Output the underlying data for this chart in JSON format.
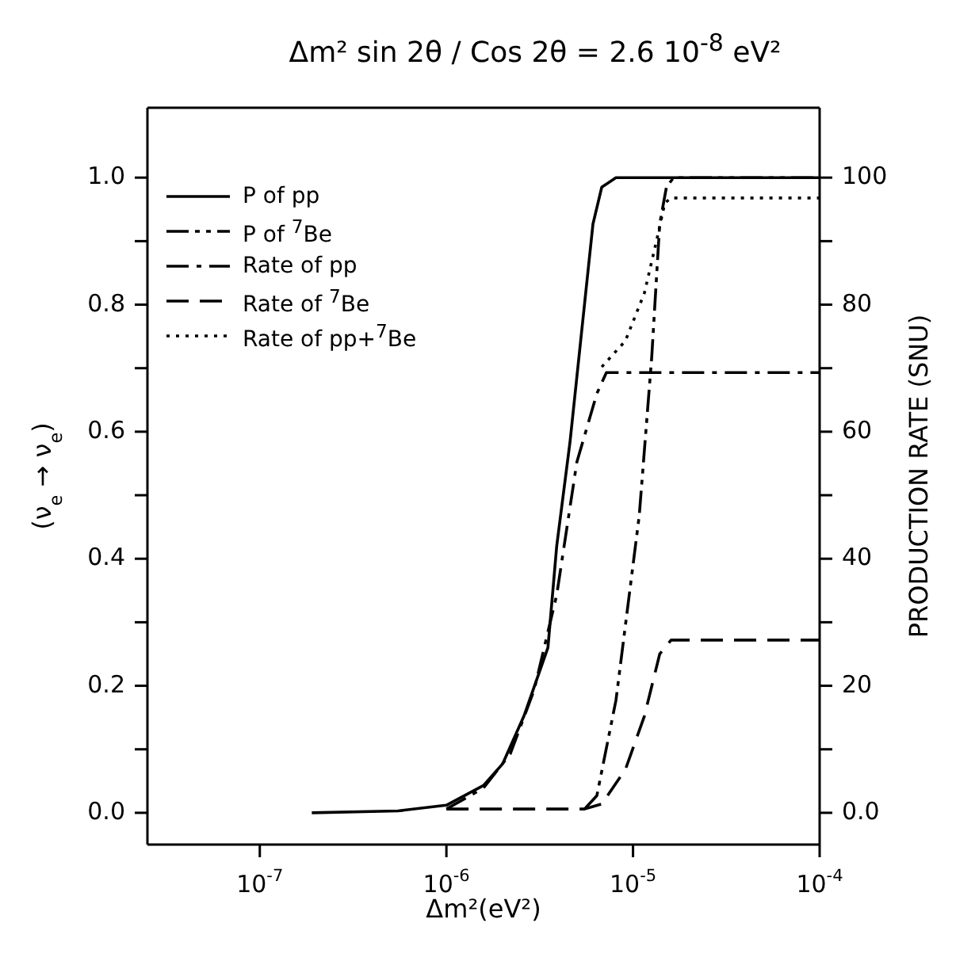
{
  "chart_data": {
    "type": "line",
    "title": "Δm² sin 2θ / Cos 2θ = 2.6  10$^{-8}$ eV²",
    "xlabel": "Δm²(eV²)",
    "ylabel": "(ν$_{e}$ → ν$_{e}$)",
    "y2label": "PRODUCTION RATE (SNU)",
    "log": "x",
    "grid": false,
    "legend": "top left",
    "marker": "none",
    "xlim": [
      2.5e-08,
      0.0001
    ],
    "xticks": [
      {
        "value": 1e-07,
        "label": "10$^{-7}$"
      },
      {
        "value": 1e-06,
        "label": "10$^{-6}$"
      },
      {
        "value": 1e-05,
        "label": "10$^{-5}$"
      },
      {
        "value": 0.0001,
        "label": "10$^{-4}$"
      }
    ],
    "ylim": [
      -0.05,
      1.11
    ],
    "yticks": [
      {
        "value": 0,
        "label": "0.0"
      },
      {
        "value": 0.1,
        "label": null
      },
      0.2,
      {
        "value": 0.3,
        "label": null
      },
      0.4,
      {
        "value": 0.5,
        "label": null
      },
      0.6,
      {
        "value": 0.7,
        "label": null
      },
      0.8,
      {
        "value": 0.9,
        "label": null
      },
      {
        "value": 1,
        "label": "1.0"
      }
    ],
    "y2lim": [
      -5,
      111
    ],
    "y2ticks": [
      {
        "value": 0,
        "label": "0.0"
      },
      {
        "value": 10,
        "label": null
      },
      20,
      {
        "value": 30,
        "label": null
      },
      40,
      {
        "value": 50,
        "label": null
      },
      60,
      {
        "value": 70,
        "label": null
      },
      80,
      {
        "value": 90,
        "label": null
      },
      100
    ],
    "series": [
      {
        "name": "P of pp",
        "color": "#000000",
        "line_style": "solid",
        "x": [
          1.9e-07,
          5.5e-07,
          1e-06,
          1.58e-06,
          2e-06,
          2.6e-06,
          3.5e-06,
          3.9e-06,
          4.6e-06,
          6.1e-06,
          6.8e-06,
          8.1e-06,
          0.0001
        ],
        "values": [
          0,
          0.003,
          0.012,
          0.043,
          0.077,
          0.152,
          0.26,
          0.42,
          0.585,
          0.927,
          0.985,
          1,
          1
        ]
      },
      {
        "name": "P of $^{7}$Be",
        "color": "#000000",
        "line_style": "dashdotdot",
        "x": [
          5.5e-06,
          6.4e-06,
          8.1e-06,
          1.08e-05,
          1.26e-05,
          1.39e-05,
          1.51e-05,
          1.65e-05,
          0.0001
        ],
        "values": [
          0.006,
          0.027,
          0.177,
          0.468,
          0.718,
          0.927,
          0.985,
          1,
          1
        ]
      },
      {
        "name": "Rate of  pp",
        "color": "#000000",
        "line_style": "dashdot",
        "axis": "y2",
        "x": [
          1e-06,
          1.58e-06,
          2.2e-06,
          2.95e-06,
          3.9e-06,
          5e-06,
          6.4e-06,
          7.2e-06,
          0.0001
        ],
        "values": [
          0.6,
          3.9,
          9.3,
          19.3,
          34.3,
          55.2,
          66,
          69.3,
          69.3
        ]
      },
      {
        "name": "Rate of $^{7}$Be",
        "color": "#000000",
        "line_style": "dashed",
        "axis": "y2",
        "x": [
          1e-06,
          5.5e-06,
          6.8e-06,
          9.1e-06,
          1.15e-05,
          1.39e-05,
          1.6e-05,
          0.0001
        ],
        "values": [
          0.6,
          0.6,
          1.4,
          6.8,
          15.2,
          25,
          27.2,
          27.2
        ]
      },
      {
        "name": "Rate of pp+$^{7}$Be",
        "color": "#000000",
        "line_style": "dotted",
        "axis": "y2",
        "x": [
          6.8e-06,
          9.1e-06,
          1.15e-05,
          1.34e-05,
          1.48e-05,
          1.6e-05,
          0.0001
        ],
        "values": [
          70.2,
          74.3,
          81.8,
          90.2,
          96,
          96.8,
          96.8
        ]
      }
    ]
  }
}
